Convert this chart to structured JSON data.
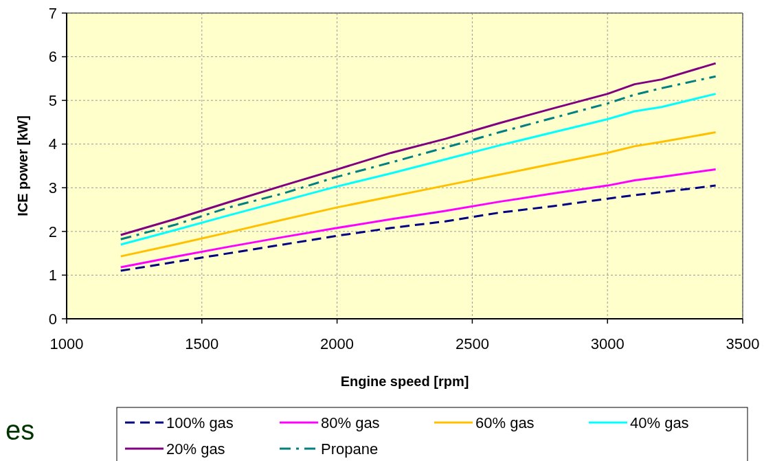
{
  "chart_data": {
    "type": "line",
    "xlabel": "Engine speed [rpm]",
    "ylabel": "ICE power [kW]",
    "x": [
      1200,
      1400,
      1600,
      1800,
      2000,
      2200,
      2400,
      2600,
      2800,
      3000,
      3100,
      3200,
      3400
    ],
    "xlim": [
      1000,
      3500
    ],
    "xticks": [
      1000,
      1500,
      2000,
      2500,
      3000,
      3500
    ],
    "ylim": [
      0,
      7
    ],
    "yticks": [
      0,
      1,
      2,
      3,
      4,
      5,
      6,
      7
    ],
    "grid": true,
    "legend": "bottom",
    "marker": "none",
    "series": [
      {
        "name": "100% gas",
        "color": "#000080",
        "line_style": "dashed",
        "values": [
          1.1,
          1.3,
          1.5,
          1.7,
          1.9,
          2.08,
          2.23,
          2.43,
          2.58,
          2.75,
          2.83,
          2.9,
          3.05
        ]
      },
      {
        "name": "80% gas",
        "color": "#ff00ff",
        "line_style": "solid",
        "values": [
          1.18,
          1.42,
          1.65,
          1.87,
          2.08,
          2.28,
          2.47,
          2.68,
          2.87,
          3.05,
          3.17,
          3.25,
          3.42
        ]
      },
      {
        "name": "60% gas",
        "color": "#ffc000",
        "line_style": "solid",
        "values": [
          1.43,
          1.7,
          1.98,
          2.27,
          2.55,
          2.8,
          3.05,
          3.3,
          3.55,
          3.8,
          3.95,
          4.05,
          4.27
        ]
      },
      {
        "name": "40% gas",
        "color": "#00ffff",
        "line_style": "solid",
        "values": [
          1.7,
          2.03,
          2.37,
          2.7,
          3.03,
          3.33,
          3.65,
          3.97,
          4.27,
          4.57,
          4.75,
          4.85,
          5.15
        ]
      },
      {
        "name": "20% gas",
        "color": "#800080",
        "line_style": "solid",
        "values": [
          1.92,
          2.28,
          2.67,
          3.05,
          3.42,
          3.8,
          4.12,
          4.48,
          4.82,
          5.15,
          5.37,
          5.48,
          5.85
        ]
      },
      {
        "name": "Propane",
        "color": "#008080",
        "line_style": "dashdot",
        "values": [
          1.82,
          2.15,
          2.55,
          2.87,
          3.25,
          3.58,
          3.92,
          4.27,
          4.6,
          4.93,
          5.13,
          5.28,
          5.55
        ]
      }
    ],
    "annotations": [
      "es"
    ]
  }
}
